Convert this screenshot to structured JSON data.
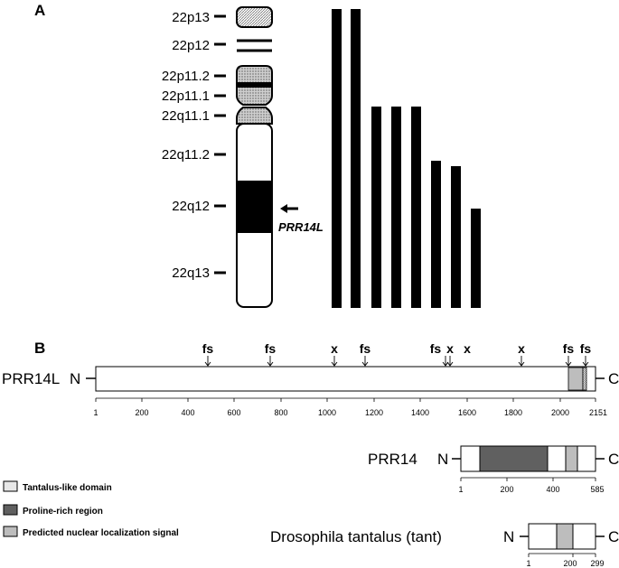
{
  "panel_a": {
    "label": "A",
    "bands": [
      "22p13",
      "22p12",
      "22p11.2",
      "22p11.1",
      "22q11.1",
      "22q11.2",
      "22q12",
      "22q13"
    ],
    "gene_label": "PRR14L"
  },
  "panel_b": {
    "label": "B",
    "prr14l": {
      "name": "PRR14L",
      "n": "N",
      "c": "C",
      "length": 2151,
      "mutations": [
        {
          "type": "fs",
          "pos": 490
        },
        {
          "type": "fs",
          "pos": 760
        },
        {
          "type": "x",
          "pos": 1035
        },
        {
          "type": "fs",
          "pos": 1160
        },
        {
          "type": "fs",
          "pos": 1505
        },
        {
          "type": "x",
          "pos": 1525
        },
        {
          "type": "x",
          "pos": 1830
        },
        {
          "type": "fs",
          "pos": 2030
        },
        {
          "type": "fs",
          "pos": 2090
        }
      ],
      "ticks": [
        "1",
        "200",
        "400",
        "600",
        "800",
        "1000",
        "1200",
        "1400",
        "1600",
        "1800",
        "2000",
        "2151"
      ]
    },
    "prr14": {
      "name": "PRR14",
      "n": "N",
      "c": "C",
      "length": 585,
      "ticks": [
        "1",
        "200",
        "400",
        "585"
      ]
    },
    "tant": {
      "name": "Drosophila tantalus (tant)",
      "n": "N",
      "c": "C",
      "length": 299,
      "ticks": [
        "1",
        "200",
        "299"
      ]
    },
    "legend": [
      "Tantalus-like domain",
      "Proline-rich region",
      "Predicted nuclear localization signal"
    ]
  },
  "colors": {
    "tantalus_domain": "#e8e8e8",
    "proline_rich": "#606060",
    "nls": "#bdbdbd",
    "bar": "#000000"
  }
}
